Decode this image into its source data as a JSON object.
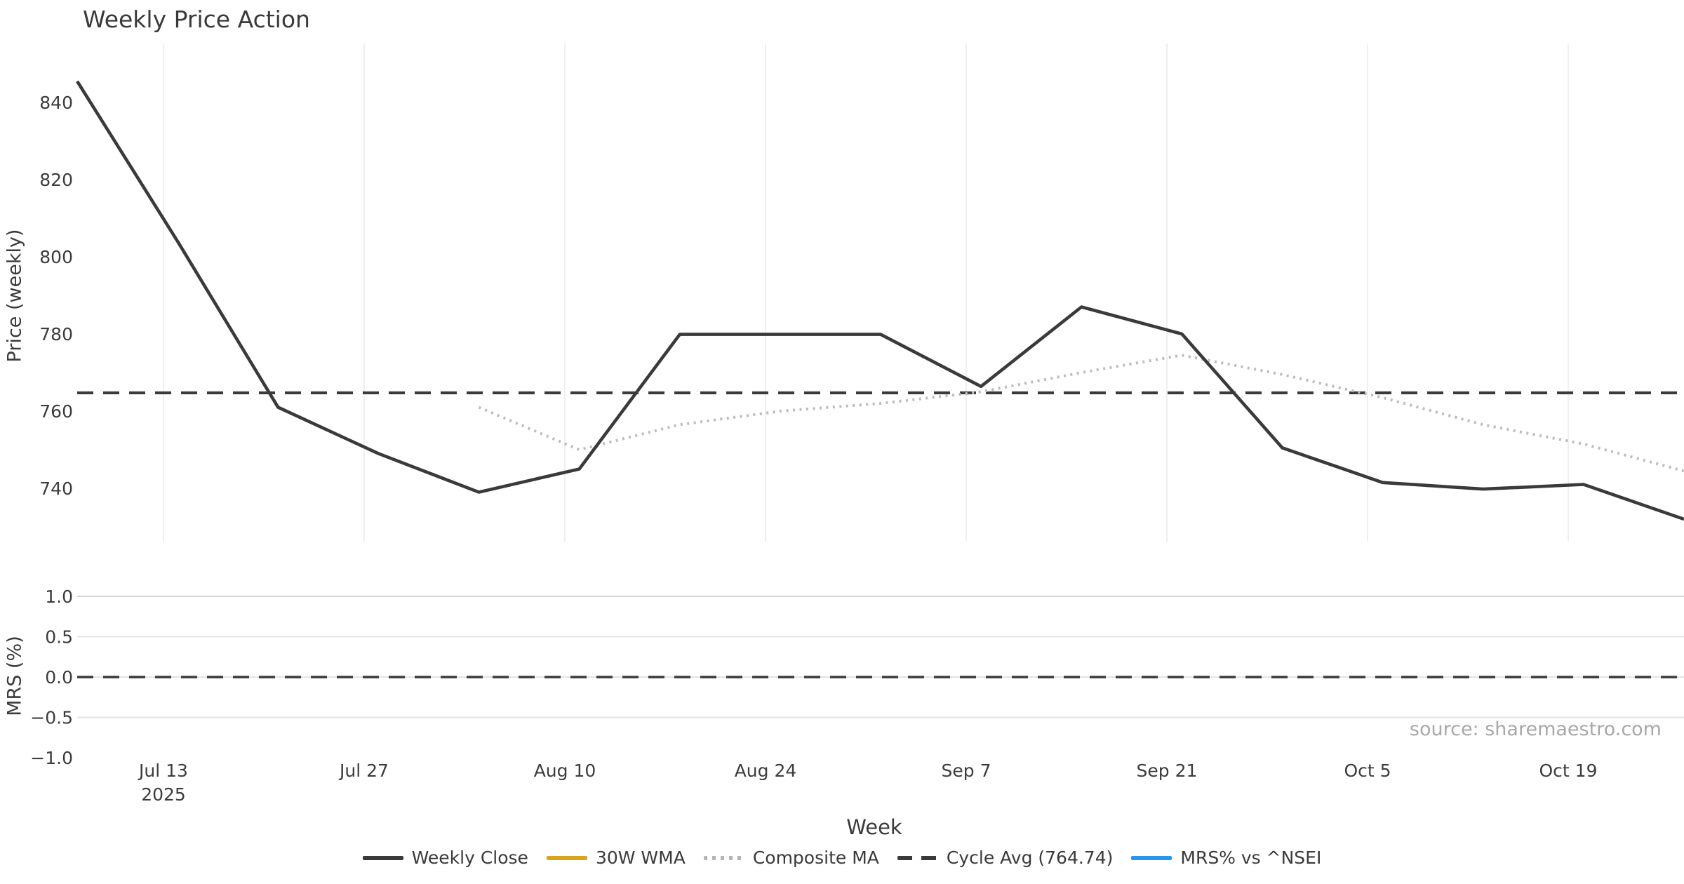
{
  "title": "Weekly Price Action",
  "source_note": "source: sharemaestro.com",
  "axis": {
    "week_label": "Week"
  },
  "chart_data": [
    {
      "type": "line",
      "panel": "price",
      "title": "Weekly Price Action",
      "xlabel": "Week",
      "ylabel": "Price (weekly)",
      "grid": "vertical-only",
      "ylim": [
        730,
        848
      ],
      "y_tick_values": [
        840,
        820,
        800,
        780,
        760,
        740
      ],
      "y_ticks": [
        "840",
        "820",
        "800",
        "780",
        "760",
        "740"
      ],
      "x_ticks": [
        {
          "label": "Jul 13",
          "sublabel": "2025"
        },
        {
          "label": "Jul 27"
        },
        {
          "label": "Aug 10"
        },
        {
          "label": "Aug 24"
        },
        {
          "label": "Sep 7"
        },
        {
          "label": "Sep 21"
        },
        {
          "label": "Oct 5"
        },
        {
          "label": "Oct 19"
        }
      ],
      "x_note": "17 weekly closes spanning the full plot width; labeled ticks every 2 weeks",
      "series": [
        {
          "name": "Weekly Close",
          "style": "solid",
          "color": "#3a3a3a",
          "values": [
            845.5,
            804,
            761,
            749,
            739,
            745,
            779.9,
            779.9,
            779.9,
            766.4,
            787,
            780,
            750.5,
            741.5,
            739.8,
            741,
            732
          ]
        },
        {
          "name": "30W WMA",
          "style": "solid",
          "color": "#d9a521",
          "values": []
        },
        {
          "name": "Composite MA",
          "style": "dotted",
          "color": "#bcbcbc",
          "values": [
            null,
            null,
            null,
            null,
            761,
            750,
            756.5,
            760,
            762,
            765,
            770,
            774.5,
            769.5,
            763.5,
            756.5,
            751.5,
            744.5
          ]
        },
        {
          "name": "Cycle Avg",
          "style": "dashed",
          "color": "#3a3a3a",
          "value": 764.74
        }
      ]
    },
    {
      "type": "line",
      "panel": "mrs",
      "ylabel": "MRS (%)",
      "ylim": [
        -1.0,
        1.0
      ],
      "y_tick_values": [
        1.0,
        0.5,
        0.0,
        -0.5,
        -1.0
      ],
      "y_ticks": [
        "1.0",
        "0.5",
        "0.0",
        "−0.5",
        "−1.0"
      ],
      "gridline_values": [
        1.0,
        0.5,
        0.0,
        -0.5
      ],
      "zero_dashed_value": 0.0,
      "series": [
        {
          "name": "MRS% vs ^NSEI",
          "style": "solid",
          "color": "#2b95e9",
          "values": []
        }
      ]
    }
  ],
  "legend": {
    "items": [
      {
        "label": "Weekly Close",
        "style": "solid",
        "color": "#3a3a3a"
      },
      {
        "label": "30W WMA",
        "style": "solid",
        "color": "#d9a521"
      },
      {
        "label": "Composite MA",
        "style": "dotted",
        "color": "#b5b5b5"
      },
      {
        "label": "Cycle Avg (764.74)",
        "style": "dashed",
        "color": "#3a3a3a"
      },
      {
        "label": "MRS% vs ^NSEI",
        "style": "solid",
        "color": "#2b95e9"
      }
    ]
  },
  "colors": {
    "text": "#3a3a3a",
    "tick_text": "#3c3c3c",
    "grid_vertical": "#edeff3",
    "grid_horizontal": "#e3e3e3",
    "grid_horizontal_top": "#d6d6d6",
    "source_text": "#a8a8a8",
    "background": "#ffffff"
  }
}
